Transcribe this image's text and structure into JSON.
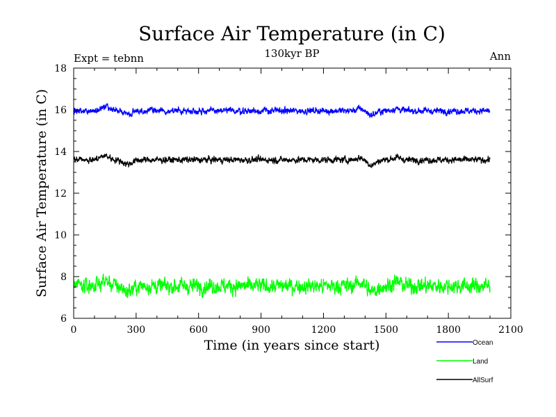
{
  "chart_data": {
    "type": "line",
    "title": "Surface Air Temperature (in C)",
    "subtitle": "130kyr BP",
    "left_label": "Expt = tebnn",
    "right_label": "Ann",
    "xlabel": "Time (in years since start)",
    "ylabel": "Surface Air Temperature (in C)",
    "xlim": [
      0,
      2100
    ],
    "ylim": [
      6,
      18
    ],
    "xticks": [
      "0",
      "300",
      "600",
      "900",
      "1200",
      "1500",
      "1800",
      "2100"
    ],
    "yticks": [
      "6",
      "8",
      "10",
      "12",
      "14",
      "16",
      "18"
    ],
    "x_start": 0,
    "x_end": 2000,
    "series": [
      {
        "name": "Ocean",
        "color": "#0000ff",
        "mean": 15.95,
        "noise": 0.09,
        "anomalies": [
          [
            150,
            0.18
          ],
          [
            260,
            -0.15
          ],
          [
            1380,
            0.1
          ],
          [
            1430,
            -0.2
          ],
          [
            1550,
            0.1
          ]
        ]
      },
      {
        "name": "Land",
        "color": "#00ff00",
        "mean": 7.55,
        "noise": 0.22,
        "anomalies": [
          [
            150,
            0.25
          ],
          [
            260,
            -0.25
          ],
          [
            1380,
            0.2
          ],
          [
            1430,
            -0.3
          ],
          [
            1550,
            0.2
          ]
        ]
      },
      {
        "name": "AllSurf",
        "color": "#000000",
        "mean": 13.6,
        "noise": 0.09,
        "anomalies": [
          [
            150,
            0.2
          ],
          [
            260,
            -0.2
          ],
          [
            1380,
            0.1
          ],
          [
            1430,
            -0.25
          ],
          [
            1550,
            0.1
          ]
        ]
      }
    ]
  }
}
